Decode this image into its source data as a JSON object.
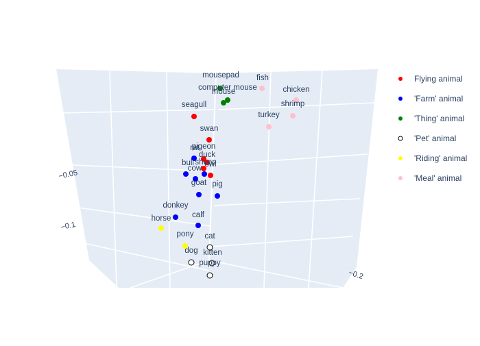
{
  "chart_data": {
    "type": "scatter3d",
    "title": "",
    "axes": {
      "x": {
        "label": "",
        "ticks": [
          -0.2
        ]
      },
      "y": {
        "label": "",
        "ticks": [
          -0.1,
          -0.05
        ]
      },
      "z": {
        "label": "",
        "ticks": []
      }
    },
    "grid": true,
    "legend": {
      "position": "right"
    },
    "series": [
      {
        "name": "Flying animal",
        "color": "#ff0000",
        "hollow": false,
        "points": [
          {
            "label": "seagull"
          },
          {
            "label": "swan"
          },
          {
            "label": "pigeon"
          },
          {
            "label": "duck"
          },
          {
            "label": "owl"
          },
          {
            "label": ""
          }
        ]
      },
      {
        "name": "'Farm' animal",
        "color": "#0000ff",
        "hollow": false,
        "points": [
          {
            "label": "rat"
          },
          {
            "label": "bull"
          },
          {
            "label": "sheep"
          },
          {
            "label": "cow"
          },
          {
            "label": "goat"
          },
          {
            "label": "pig"
          },
          {
            "label": "donkey"
          },
          {
            "label": "calf"
          }
        ]
      },
      {
        "name": "'Thing' animal",
        "color": "#008000",
        "hollow": false,
        "points": [
          {
            "label": "mousepad"
          },
          {
            "label": "computer mouse"
          },
          {
            "label": "mouse"
          }
        ]
      },
      {
        "name": "'Pet' animal",
        "color": "#ffffff",
        "hollow": true,
        "points": [
          {
            "label": "cat"
          },
          {
            "label": "dog"
          },
          {
            "label": "kitten"
          },
          {
            "label": "puppy"
          }
        ]
      },
      {
        "name": "'Riding' animal",
        "color": "#ffff00",
        "hollow": false,
        "points": [
          {
            "label": "horse"
          },
          {
            "label": "pony"
          }
        ]
      },
      {
        "name": "'Meal' animal",
        "color": "#ffc0cb",
        "hollow": false,
        "points": [
          {
            "label": "fish"
          },
          {
            "label": "chicken"
          },
          {
            "label": "shrimp"
          },
          {
            "label": "turkey"
          }
        ]
      }
    ]
  }
}
